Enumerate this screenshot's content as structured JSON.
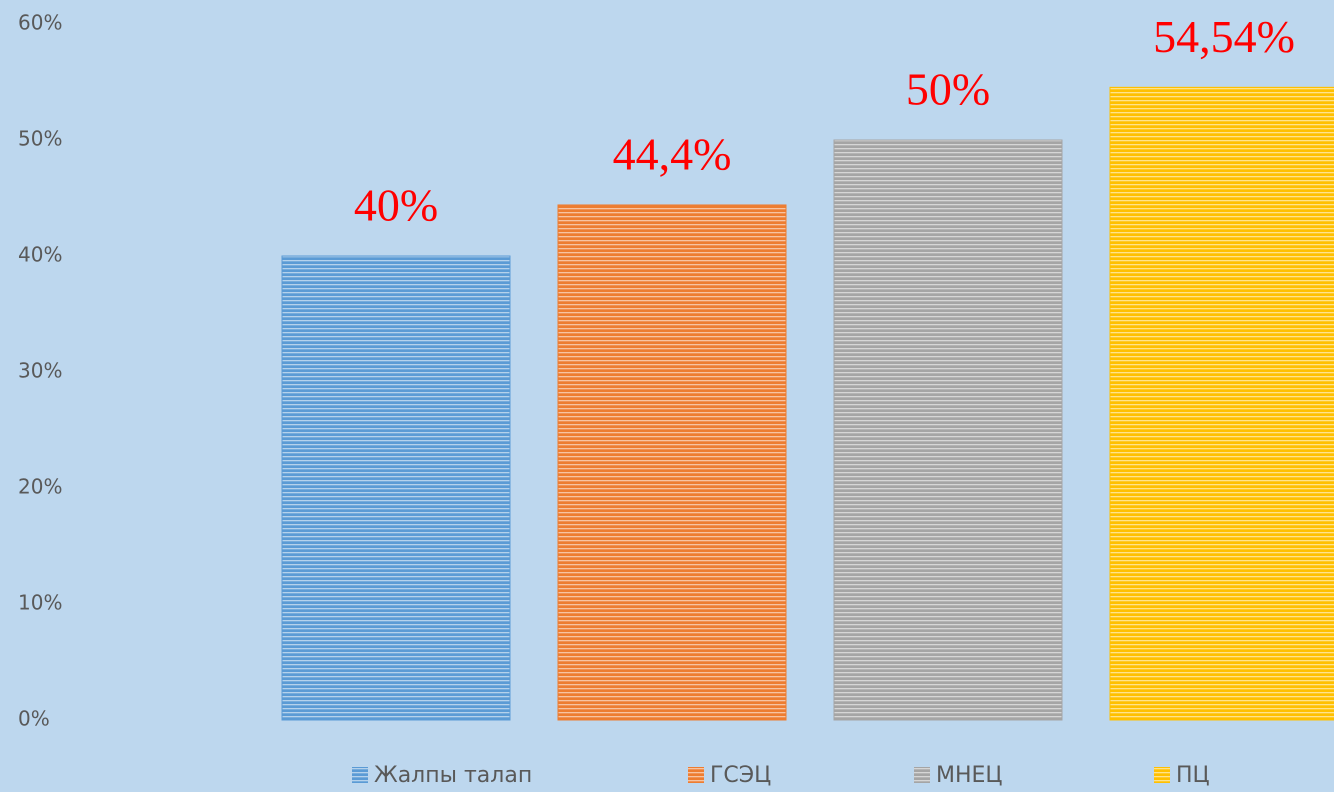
{
  "chart_data": {
    "type": "bar",
    "categories": [
      null
    ],
    "series": [
      {
        "name": "Жалпы талап",
        "color": "#5b9bd5",
        "values": [
          40
        ],
        "value_labels": [
          "40%"
        ]
      },
      {
        "name": "ГСЭЦ",
        "color": "#ed7d31",
        "values": [
          44.4
        ],
        "value_labels": [
          "44,4%"
        ]
      },
      {
        "name": "МНЕЦ",
        "color": "#a5a5a5",
        "values": [
          50
        ],
        "value_labels": [
          "50%"
        ]
      },
      {
        "name": "ПЦ",
        "color": "#ffc000",
        "values": [
          54.54
        ],
        "value_labels": [
          "54,54%"
        ]
      }
    ],
    "ylim": [
      0,
      60
    ],
    "yticks": [
      {
        "value": 0,
        "label": "0%"
      },
      {
        "value": 10,
        "label": "10%"
      },
      {
        "value": 20,
        "label": "20%"
      },
      {
        "value": 30,
        "label": "30%"
      },
      {
        "value": 40,
        "label": "40%"
      },
      {
        "value": 50,
        "label": "50%"
      },
      {
        "value": 60,
        "label": "60%"
      }
    ],
    "grid": false,
    "value_label_color": "#ff0000",
    "legend": "bottom"
  }
}
